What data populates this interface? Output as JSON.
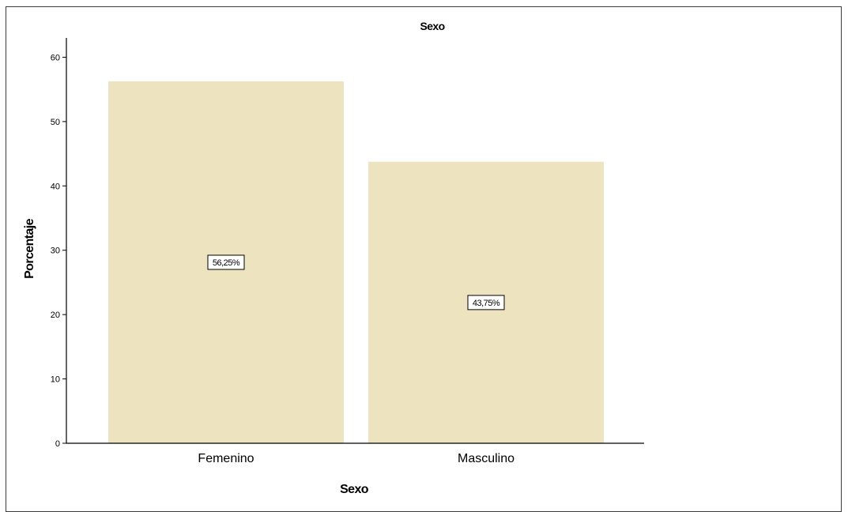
{
  "chart_data": {
    "type": "bar",
    "title": "Sexo",
    "xlabel": "Sexo",
    "ylabel": "Porcentaje",
    "categories": [
      "Femenino",
      "Masculino"
    ],
    "values": [
      56.25,
      43.75
    ],
    "data_labels": [
      "56,25%",
      "43,75%"
    ],
    "yticks": [
      "0",
      "10",
      "20",
      "30",
      "40",
      "50",
      "60"
    ],
    "ylim": [
      0,
      63
    ],
    "grid": false,
    "legend": "none",
    "colors": {
      "bar_fill": "#ede3bf",
      "axis": "#000000",
      "label_box_border": "#000000",
      "label_box_fill": "#ffffff"
    }
  }
}
